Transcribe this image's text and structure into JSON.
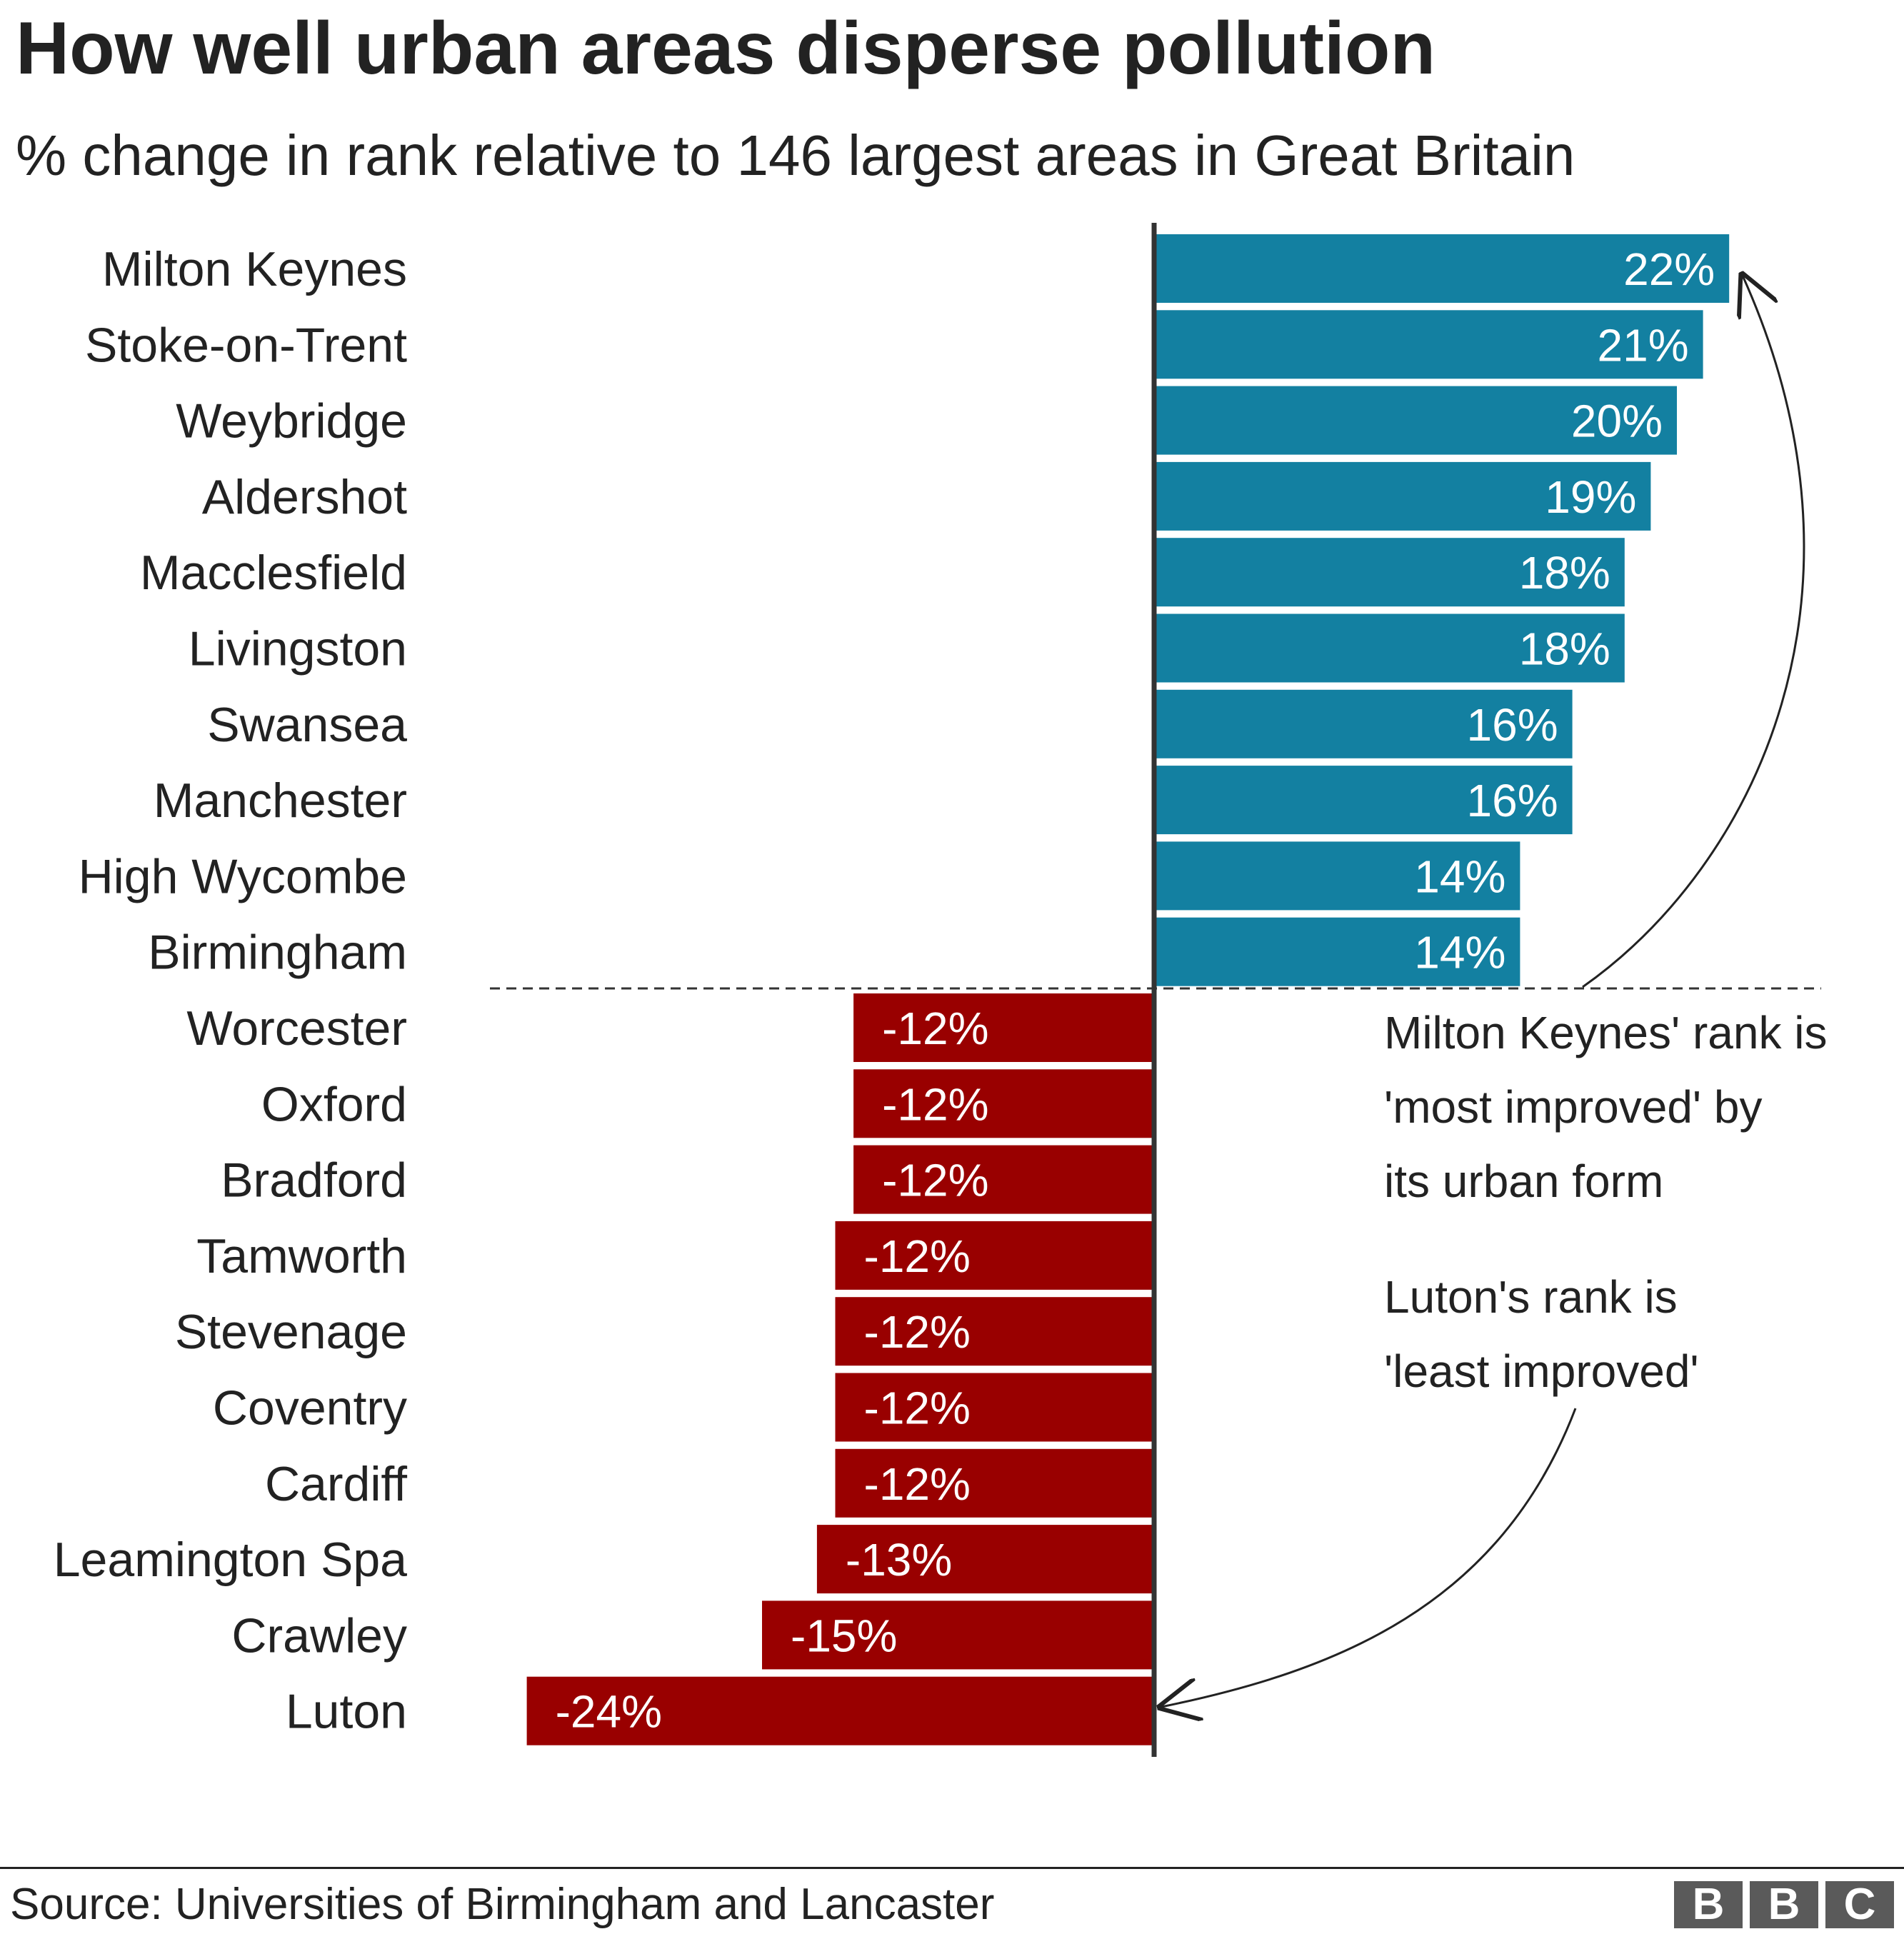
{
  "chart_data": {
    "type": "bar",
    "orientation": "horizontal",
    "title": "How well urban areas disperse pollution",
    "subtitle": "% change in rank relative to 146 largest areas in Great Britain",
    "categories": [
      "Milton Keynes",
      "Stoke-on-Trent",
      "Weybridge",
      "Aldershot",
      "Macclesfield",
      "Livingston",
      "Swansea",
      "Manchester",
      "High Wycombe",
      "Birmingham",
      "Worcester",
      "Oxford",
      "Bradford",
      "Tamworth",
      "Stevenage",
      "Coventry",
      "Cardiff",
      "Leamington Spa",
      "Crawley",
      "Luton"
    ],
    "values": [
      22,
      21,
      20,
      19,
      18,
      18,
      16,
      16,
      14,
      14,
      -12,
      -12,
      -12,
      -12,
      -12,
      -12,
      -12,
      -13,
      -15,
      -24
    ],
    "plot_values": [
      22,
      21,
      20,
      19,
      18,
      18,
      16,
      16,
      14,
      14,
      -11.5,
      -11.5,
      -11.5,
      -12.2,
      -12.2,
      -12.2,
      -12.2,
      -12.9,
      -15,
      -24
    ],
    "data_labels": [
      "22%",
      "21%",
      "20%",
      "19%",
      "18%",
      "18%",
      "16%",
      "16%",
      "14%",
      "14%",
      "-12%",
      "-12%",
      "-12%",
      "-12%",
      "-12%",
      "-12%",
      "-12%",
      "-13%",
      "-15%",
      "-24%"
    ],
    "xlim": [
      -24.5,
      22
    ],
    "grid": false,
    "legend": "none",
    "colors": {
      "positive": "#1380a1",
      "negative": "#990000",
      "text": "#222222",
      "axis": "#333333"
    },
    "annotations": [
      {
        "text": [
          "Milton Keynes' rank is",
          "'most improved' by",
          "its urban form"
        ],
        "points_to": "Milton Keynes"
      },
      {
        "text": [
          "Luton's rank is",
          "'least improved'"
        ],
        "points_to": "Luton"
      }
    ]
  },
  "footer": {
    "source": "Source: Universities of Birmingham and Lancaster",
    "logo_letters": [
      "B",
      "B",
      "C"
    ]
  }
}
